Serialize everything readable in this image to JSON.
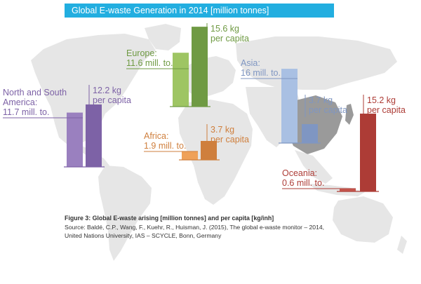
{
  "chart_data": {
    "type": "bar",
    "title": "Global E-waste Generation in 2014 [million tonnes]",
    "regions": [
      {
        "key": "americas",
        "label_lines": [
          "North and South",
          "America:",
          "11.7 mill. to."
        ],
        "total_mt": 11.7,
        "per_capita_kg": 12.2,
        "per_capita_lines": [
          "12.2 kg",
          "per capita"
        ],
        "color": "#9a80bf",
        "color_dark": "#7d62a6"
      },
      {
        "key": "europe",
        "label_lines": [
          "Europe:",
          "11.6 mill. to."
        ],
        "total_mt": 11.6,
        "per_capita_kg": 15.6,
        "per_capita_lines": [
          "15.6 kg",
          "per capita"
        ],
        "color": "#9ec563",
        "color_dark": "#6f9a43"
      },
      {
        "key": "africa",
        "label_lines": [
          "Africa:",
          "1.9 mill. to."
        ],
        "total_mt": 1.9,
        "per_capita_kg": 3.7,
        "per_capita_lines": [
          "3.7 kg",
          "per capita"
        ],
        "color": "#efa159",
        "color_dark": "#cf7f3d"
      },
      {
        "key": "asia",
        "label_lines": [
          "Asia:",
          "16 mill. to."
        ],
        "total_mt": 16,
        "per_capita_kg": 3.7,
        "per_capita_lines": [
          "3.7 kg",
          "per capita"
        ],
        "color": "#a9c0e3",
        "color_dark": "#7f96c2"
      },
      {
        "key": "oceania",
        "label_lines": [
          "Oceania:",
          "0.6 mill. to."
        ],
        "total_mt": 0.6,
        "per_capita_kg": 15.2,
        "per_capita_lines": [
          "15.2 kg",
          "per capita"
        ],
        "color": "#c7574f",
        "color_dark": "#ad3c36"
      }
    ]
  },
  "caption": {
    "title": "Figure 3: Global E-waste arising [million tonnes] and per capita [kg/inh]",
    "source_line1": "Source: Baldé, C.P., Wang, F., Kuehr, R., Huisman, J. (2015), The global e-waste monitor – 2014,",
    "source_line2": "United Nations University, IAS – SCYCLE, Bonn, Germany"
  }
}
